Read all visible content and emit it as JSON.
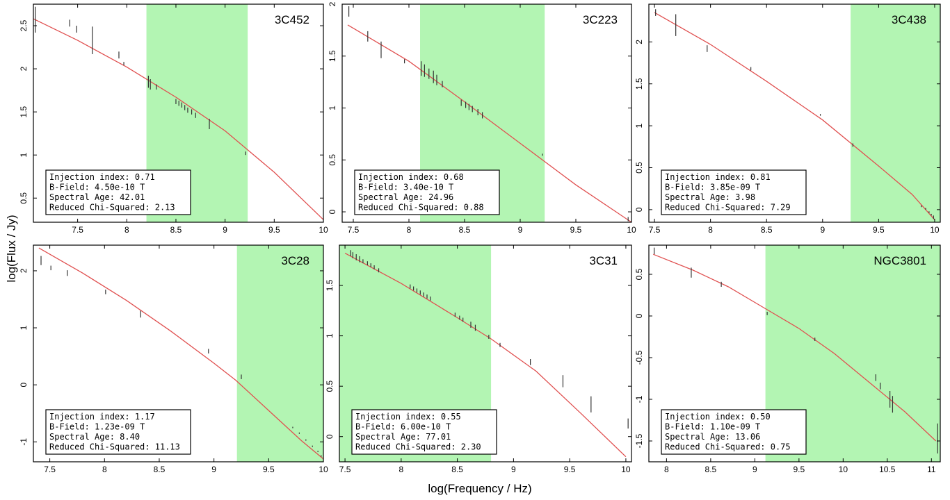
{
  "figure": {
    "ylabel": "log(Flux / Jy)",
    "xlabel": "log(Frequency / Hz)",
    "colors": {
      "band": "#b3f5b3",
      "model": "#e05050",
      "points": "#333333",
      "frame": "#000000"
    }
  },
  "chart_data": [
    {
      "type": "line",
      "name": "3C452",
      "xlim": [
        7.05,
        10.0
      ],
      "ylim": [
        0.22,
        2.75
      ],
      "xticks": [
        "7.5",
        "8",
        "8.5",
        "9",
        "9.5",
        "10"
      ],
      "xtickvals": [
        7.5,
        8,
        8.5,
        9,
        9.5,
        10
      ],
      "yticks": [
        "0.5",
        "1",
        "1.5",
        "2",
        "2.5"
      ],
      "ytickvals": [
        0.5,
        1,
        1.5,
        2,
        2.5
      ],
      "band": [
        8.2,
        9.23
      ],
      "model": {
        "x": [
          7.05,
          7.5,
          8.0,
          8.5,
          9.0,
          9.5,
          10.0
        ],
        "y": [
          2.58,
          2.33,
          2.02,
          1.67,
          1.28,
          0.8,
          0.25
        ]
      },
      "points": [
        {
          "x": 7.07,
          "y": 2.57,
          "e": 0.15
        },
        {
          "x": 7.42,
          "y": 2.53,
          "e": 0.04
        },
        {
          "x": 7.49,
          "y": 2.46,
          "e": 0.04
        },
        {
          "x": 7.65,
          "y": 2.33,
          "e": 0.16
        },
        {
          "x": 7.92,
          "y": 2.16,
          "e": 0.04
        },
        {
          "x": 7.97,
          "y": 2.06,
          "e": 0.02
        },
        {
          "x": 8.22,
          "y": 1.85,
          "e": 0.07
        },
        {
          "x": 8.24,
          "y": 1.82,
          "e": 0.06
        },
        {
          "x": 8.3,
          "y": 1.79,
          "e": 0.03
        },
        {
          "x": 8.5,
          "y": 1.62,
          "e": 0.03
        },
        {
          "x": 8.53,
          "y": 1.6,
          "e": 0.03
        },
        {
          "x": 8.56,
          "y": 1.58,
          "e": 0.03
        },
        {
          "x": 8.59,
          "y": 1.55,
          "e": 0.03
        },
        {
          "x": 8.62,
          "y": 1.52,
          "e": 0.03
        },
        {
          "x": 8.66,
          "y": 1.5,
          "e": 0.03
        },
        {
          "x": 8.7,
          "y": 1.46,
          "e": 0.03
        },
        {
          "x": 8.84,
          "y": 1.36,
          "e": 0.06
        },
        {
          "x": 9.21,
          "y": 1.02,
          "e": 0.02
        }
      ],
      "info": [
        "Injection index: 0.71",
        "B-Field: 4.50e-10 T",
        "Spectral Age: 42.01",
        "Reduced Chi-Squared: 2.13"
      ]
    },
    {
      "type": "line",
      "name": "3C223",
      "xlim": [
        7.4,
        10.0
      ],
      "ylim": [
        -0.1,
        2.0
      ],
      "xticks": [
        "7.5",
        "8",
        "8.5",
        "9",
        "9.5",
        "10"
      ],
      "xtickvals": [
        7.5,
        8,
        8.5,
        9,
        9.5,
        10
      ],
      "yticks": [
        "0",
        "0.5",
        "1",
        "1.5",
        "2"
      ],
      "ytickvals": [
        0,
        0.5,
        1,
        1.5,
        2
      ],
      "band": [
        8.1,
        9.22
      ],
      "model": {
        "x": [
          7.45,
          8.0,
          8.5,
          9.0,
          9.5,
          10.0
        ],
        "y": [
          1.8,
          1.45,
          1.06,
          0.66,
          0.26,
          -0.1
        ]
      },
      "points": [
        {
          "x": 7.46,
          "y": 1.93,
          "e": 0.05
        },
        {
          "x": 7.63,
          "y": 1.69,
          "e": 0.05
        },
        {
          "x": 7.75,
          "y": 1.56,
          "e": 0.08
        },
        {
          "x": 7.96,
          "y": 1.45,
          "e": 0.02
        },
        {
          "x": 8.11,
          "y": 1.38,
          "e": 0.07
        },
        {
          "x": 8.14,
          "y": 1.36,
          "e": 0.06
        },
        {
          "x": 8.18,
          "y": 1.33,
          "e": 0.05
        },
        {
          "x": 8.22,
          "y": 1.3,
          "e": 0.06
        },
        {
          "x": 8.25,
          "y": 1.27,
          "e": 0.05
        },
        {
          "x": 8.3,
          "y": 1.23,
          "e": 0.03
        },
        {
          "x": 8.47,
          "y": 1.05,
          "e": 0.03
        },
        {
          "x": 8.51,
          "y": 1.03,
          "e": 0.03
        },
        {
          "x": 8.54,
          "y": 1.01,
          "e": 0.03
        },
        {
          "x": 8.57,
          "y": 0.99,
          "e": 0.03
        },
        {
          "x": 8.62,
          "y": 0.96,
          "e": 0.03
        },
        {
          "x": 8.66,
          "y": 0.93,
          "e": 0.03
        },
        {
          "x": 9.2,
          "y": 0.55,
          "e": 0.01
        },
        {
          "x": 9.97,
          "y": -0.07,
          "e": 0.02
        }
      ],
      "info": [
        "Injection index: 0.68",
        "B-Field: 3.40e-10 T",
        "Spectral Age: 24.96",
        "Reduced Chi-Squared: 0.88"
      ]
    },
    {
      "type": "line",
      "name": "3C438",
      "xlim": [
        7.45,
        10.05
      ],
      "ylim": [
        -0.15,
        2.45
      ],
      "xticks": [
        "7.5",
        "8",
        "8.5",
        "9",
        "9.5",
        "10"
      ],
      "xtickvals": [
        7.5,
        8,
        8.5,
        9,
        9.5,
        10
      ],
      "yticks": [
        "0",
        "0.5",
        "1",
        "1.5",
        "2"
      ],
      "ytickvals": [
        0,
        0.5,
        1,
        1.5,
        2
      ],
      "band": [
        9.25,
        10.05
      ],
      "model": {
        "x": [
          7.5,
          8.0,
          8.5,
          9.0,
          9.5,
          9.8,
          10.0
        ],
        "y": [
          2.35,
          1.97,
          1.53,
          1.07,
          0.52,
          0.18,
          -0.12
        ]
      },
      "points": [
        {
          "x": 7.51,
          "y": 2.35,
          "e": 0.04
        },
        {
          "x": 7.69,
          "y": 2.2,
          "e": 0.13
        },
        {
          "x": 7.97,
          "y": 1.92,
          "e": 0.04
        },
        {
          "x": 8.36,
          "y": 1.68,
          "e": 0.02
        },
        {
          "x": 8.98,
          "y": 1.13,
          "e": 0.01
        },
        {
          "x": 9.27,
          "y": 0.77,
          "e": 0.02
        },
        {
          "x": 9.88,
          "y": 0.04,
          "e": 0.01
        },
        {
          "x": 9.92,
          "y": 0.01,
          "e": 0.01
        },
        {
          "x": 9.95,
          "y": -0.03,
          "e": 0.01
        },
        {
          "x": 9.97,
          "y": -0.06,
          "e": 0.01
        },
        {
          "x": 9.99,
          "y": -0.09,
          "e": 0.02
        }
      ],
      "info": [
        "Injection index: 0.81",
        "B-Field: 3.85e-09 T",
        "Spectral Age: 3.98",
        "Reduced Chi-Squared: 7.29"
      ]
    },
    {
      "type": "line",
      "name": "3C28",
      "xlim": [
        7.35,
        10.0
      ],
      "ylim": [
        -1.35,
        2.45
      ],
      "xticks": [
        "7.5",
        "8",
        "8.5",
        "9",
        "9.5",
        "10"
      ],
      "xtickvals": [
        7.5,
        8,
        8.5,
        9,
        9.5,
        10
      ],
      "yticks": [
        "-1",
        "0",
        "1",
        "2"
      ],
      "ytickvals": [
        -1,
        0,
        1,
        2
      ],
      "band": [
        9.21,
        10.0
      ],
      "model": {
        "x": [
          7.4,
          7.8,
          8.2,
          8.6,
          9.0,
          9.2,
          9.5,
          9.8,
          10.0
        ],
        "y": [
          2.4,
          1.96,
          1.48,
          0.95,
          0.38,
          0.08,
          -0.45,
          -0.98,
          -1.3
        ]
      },
      "points": [
        {
          "x": 7.42,
          "y": 2.18,
          "e": 0.08
        },
        {
          "x": 7.51,
          "y": 2.05,
          "e": 0.04
        },
        {
          "x": 7.66,
          "y": 1.96,
          "e": 0.05
        },
        {
          "x": 8.01,
          "y": 1.63,
          "e": 0.04
        },
        {
          "x": 8.33,
          "y": 1.24,
          "e": 0.06
        },
        {
          "x": 8.95,
          "y": 0.59,
          "e": 0.04
        },
        {
          "x": 9.25,
          "y": 0.14,
          "e": 0.04
        },
        {
          "x": 9.72,
          "y": -0.75,
          "e": 0.01
        },
        {
          "x": 9.78,
          "y": -0.85,
          "e": 0.01
        },
        {
          "x": 9.84,
          "y": -0.97,
          "e": 0.01
        },
        {
          "x": 9.9,
          "y": -1.08,
          "e": 0.01
        },
        {
          "x": 9.95,
          "y": -1.17,
          "e": 0.01
        },
        {
          "x": 9.98,
          "y": -1.25,
          "e": 0.01
        }
      ],
      "info": [
        "Injection index: 1.17",
        "B-Field: 1.23e-09 T",
        "Spectral Age: 8.40",
        "Reduced Chi-Squared: 11.13"
      ]
    },
    {
      "type": "line",
      "name": "3C31",
      "xlim": [
        7.45,
        10.05
      ],
      "ylim": [
        -0.25,
        1.9
      ],
      "xticks": [
        "7.5",
        "8",
        "8.5",
        "9",
        "9.5",
        "10"
      ],
      "xtickvals": [
        7.5,
        8,
        8.5,
        9,
        9.5,
        10
      ],
      "yticks": [
        "0",
        "0.5",
        "1",
        "1.5"
      ],
      "ytickvals": [
        0,
        0.5,
        1,
        1.5
      ],
      "band": [
        7.45,
        8.8
      ],
      "model": {
        "x": [
          7.5,
          8.0,
          8.5,
          8.8,
          9.2,
          9.6,
          10.0
        ],
        "y": [
          1.82,
          1.52,
          1.18,
          0.97,
          0.65,
          0.23,
          -0.2
        ]
      },
      "points": [
        {
          "x": 7.55,
          "y": 1.82,
          "e": 0.03
        },
        {
          "x": 7.57,
          "y": 1.8,
          "e": 0.03
        },
        {
          "x": 7.6,
          "y": 1.78,
          "e": 0.03
        },
        {
          "x": 7.63,
          "y": 1.76,
          "e": 0.03
        },
        {
          "x": 7.66,
          "y": 1.74,
          "e": 0.02
        },
        {
          "x": 7.7,
          "y": 1.72,
          "e": 0.02
        },
        {
          "x": 7.73,
          "y": 1.7,
          "e": 0.02
        },
        {
          "x": 7.76,
          "y": 1.68,
          "e": 0.02
        },
        {
          "x": 7.8,
          "y": 1.65,
          "e": 0.02
        },
        {
          "x": 8.08,
          "y": 1.49,
          "e": 0.02
        },
        {
          "x": 8.11,
          "y": 1.47,
          "e": 0.02
        },
        {
          "x": 8.14,
          "y": 1.45,
          "e": 0.02
        },
        {
          "x": 8.17,
          "y": 1.43,
          "e": 0.02
        },
        {
          "x": 8.2,
          "y": 1.41,
          "e": 0.02
        },
        {
          "x": 8.23,
          "y": 1.39,
          "e": 0.02
        },
        {
          "x": 8.26,
          "y": 1.37,
          "e": 0.02
        },
        {
          "x": 8.48,
          "y": 1.21,
          "e": 0.02
        },
        {
          "x": 8.52,
          "y": 1.18,
          "e": 0.02
        },
        {
          "x": 8.55,
          "y": 1.16,
          "e": 0.02
        },
        {
          "x": 8.62,
          "y": 1.11,
          "e": 0.03
        },
        {
          "x": 8.66,
          "y": 1.08,
          "e": 0.03
        },
        {
          "x": 8.78,
          "y": 0.99,
          "e": 0.02
        },
        {
          "x": 8.88,
          "y": 0.91,
          "e": 0.02
        },
        {
          "x": 9.15,
          "y": 0.74,
          "e": 0.03
        },
        {
          "x": 9.44,
          "y": 0.55,
          "e": 0.06
        },
        {
          "x": 9.69,
          "y": 0.32,
          "e": 0.08
        },
        {
          "x": 10.02,
          "y": 0.13,
          "e": 0.05
        }
      ],
      "info": [
        "Injection index: 0.55",
        "B-Field: 6.00e-10 T",
        "Spectral Age: 77.01",
        "Reduced Chi-Squared: 2.30"
      ]
    },
    {
      "type": "line",
      "name": "NGC3801",
      "xlim": [
        7.8,
        11.1
      ],
      "ylim": [
        -1.75,
        0.85
      ],
      "xticks": [
        "8",
        "8.5",
        "9",
        "9.5",
        "10",
        "10.5",
        "11"
      ],
      "xtickvals": [
        8,
        8.5,
        9,
        9.5,
        10,
        10.5,
        11
      ],
      "yticks": [
        "-1.5",
        "-1",
        "-0.5",
        "0",
        "0.5"
      ],
      "ytickvals": [
        -1.5,
        -1,
        -0.5,
        0,
        0.5
      ],
      "band": [
        9.12,
        11.1
      ],
      "model": {
        "x": [
          7.85,
          8.3,
          8.7,
          9.1,
          9.5,
          9.9,
          10.3,
          10.7,
          11.05
        ],
        "y": [
          0.74,
          0.55,
          0.35,
          0.1,
          -0.15,
          -0.45,
          -0.8,
          -1.15,
          -1.5
        ]
      },
      "points": [
        {
          "x": 7.86,
          "y": 0.78,
          "e": 0.04
        },
        {
          "x": 8.28,
          "y": 0.52,
          "e": 0.06
        },
        {
          "x": 8.62,
          "y": 0.38,
          "e": 0.03
        },
        {
          "x": 9.14,
          "y": 0.03,
          "e": 0.02
        },
        {
          "x": 9.68,
          "y": -0.28,
          "e": 0.02
        },
        {
          "x": 10.37,
          "y": -0.74,
          "e": 0.04
        },
        {
          "x": 10.42,
          "y": -0.84,
          "e": 0.04
        },
        {
          "x": 10.53,
          "y": -1.0,
          "e": 0.1
        },
        {
          "x": 10.56,
          "y": -1.06,
          "e": 0.1
        },
        {
          "x": 11.07,
          "y": -1.47,
          "e": 0.18
        }
      ],
      "info": [
        "Injection index: 0.50",
        "B-Field: 1.10e-09 T",
        "Spectral Age: 13.06",
        "Reduced Chi-Squared: 0.75"
      ]
    }
  ]
}
